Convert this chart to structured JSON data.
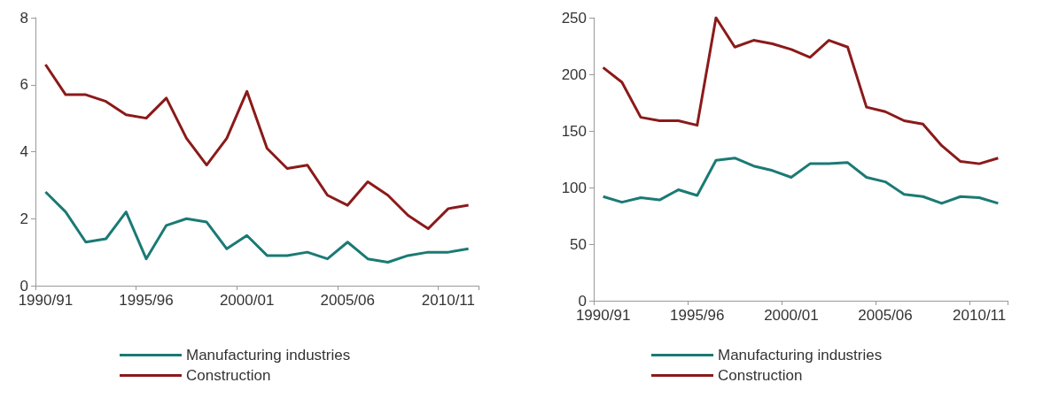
{
  "chart_data": [
    {
      "type": "line",
      "categories": [
        "1990/91",
        null,
        null,
        null,
        null,
        "1995/96",
        null,
        null,
        null,
        null,
        "2000/01",
        null,
        null,
        null,
        null,
        "2005/06",
        null,
        null,
        null,
        null,
        "2010/11",
        null
      ],
      "series": [
        {
          "name": "Manufacturing industries",
          "color": "#1b7a74",
          "values": [
            2.8,
            2.2,
            1.3,
            1.4,
            2.2,
            0.8,
            1.8,
            2.0,
            1.9,
            1.1,
            1.5,
            0.9,
            0.9,
            1.0,
            0.8,
            1.3,
            0.8,
            0.7,
            0.9,
            1.0,
            1.0,
            1.1
          ]
        },
        {
          "name": "Construction",
          "color": "#8b1a1a",
          "values": [
            6.6,
            5.7,
            5.7,
            5.5,
            5.1,
            5.0,
            5.6,
            4.4,
            3.6,
            4.4,
            5.8,
            4.1,
            3.5,
            3.6,
            2.7,
            2.4,
            3.1,
            2.7,
            2.1,
            1.7,
            2.3,
            2.4
          ]
        }
      ],
      "ylim": [
        0,
        8
      ],
      "yticks": [
        0,
        2,
        4,
        6,
        8
      ],
      "grid": false,
      "legend": "bottom",
      "marker": "none",
      "line_style": "solid"
    },
    {
      "type": "line",
      "categories": [
        "1990/91",
        null,
        null,
        null,
        null,
        "1995/96",
        null,
        null,
        null,
        null,
        "2000/01",
        null,
        null,
        null,
        null,
        "2005/06",
        null,
        null,
        null,
        null,
        "2010/11",
        null
      ],
      "series": [
        {
          "name": "Manufacturing industries",
          "color": "#1b7a74",
          "values": [
            92,
            87,
            91,
            89,
            98,
            93,
            124,
            126,
            119,
            115,
            109,
            121,
            121,
            122,
            109,
            105,
            94,
            92,
            86,
            92,
            91,
            86
          ]
        },
        {
          "name": "Construction",
          "color": "#8b1a1a",
          "values": [
            206,
            193,
            162,
            159,
            159,
            155,
            250,
            224,
            230,
            227,
            222,
            215,
            230,
            224,
            171,
            167,
            159,
            156,
            137,
            123,
            121,
            126
          ]
        }
      ],
      "ylim": [
        0,
        250
      ],
      "yticks": [
        0,
        50,
        100,
        150,
        200,
        250
      ],
      "grid": false,
      "legend": "bottom",
      "marker": "none",
      "line_style": "solid"
    }
  ]
}
